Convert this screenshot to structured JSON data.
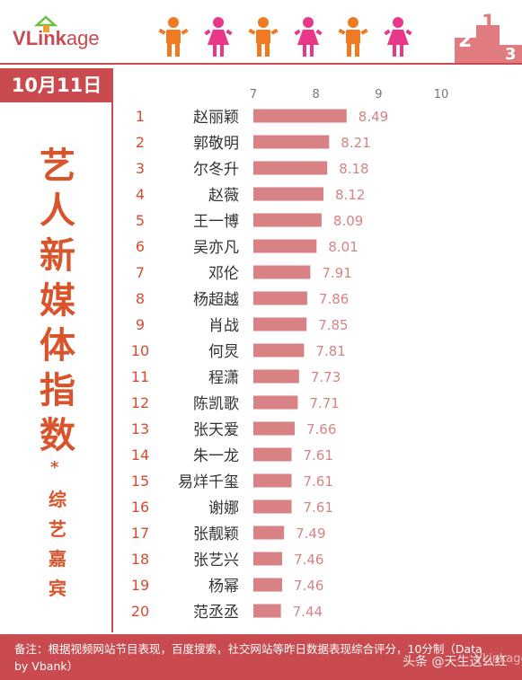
{
  "logo": {
    "v": "V",
    "link": "Link",
    "age": "age"
  },
  "icons": {
    "figures": [
      "person-icon-male",
      "person-icon-female",
      "person-icon-male",
      "person-icon-female",
      "person-icon-male",
      "person-icon-female"
    ],
    "podium": "podium-icon",
    "podium_numbers": [
      "2",
      "1",
      "3"
    ]
  },
  "colors": {
    "accent": "#c94a4f",
    "bar": "#d98285",
    "male": "#f07a22",
    "female": "#e8388a",
    "title": "#d9532b"
  },
  "date": "10月11日",
  "side": {
    "title": [
      "艺",
      "人",
      "新",
      "媒",
      "体",
      "指",
      "数"
    ],
    "star": "*",
    "subtitle": [
      "综",
      "艺",
      "嘉",
      "宾"
    ]
  },
  "chart_data": {
    "type": "bar",
    "orientation": "horizontal",
    "xlim": [
      7,
      10
    ],
    "xticks": [
      "7",
      "8",
      "9",
      "10"
    ],
    "ranks": [
      "1",
      "2",
      "3",
      "4",
      "5",
      "6",
      "7",
      "8",
      "9",
      "10",
      "11",
      "12",
      "13",
      "14",
      "15",
      "16",
      "17",
      "18",
      "19",
      "20"
    ],
    "categories": [
      "赵丽颖",
      "郭敬明",
      "尔冬升",
      "赵薇",
      "王一博",
      "吴亦凡",
      "邓伦",
      "杨超越",
      "肖战",
      "何炅",
      "程潇",
      "陈凯歌",
      "张天爱",
      "朱一龙",
      "易烊千玺",
      "谢娜",
      "张靓颖",
      "张艺兴",
      "杨幂",
      "范丞丞"
    ],
    "values": [
      8.49,
      8.21,
      8.18,
      8.12,
      8.09,
      8.01,
      7.91,
      7.86,
      7.85,
      7.81,
      7.73,
      7.71,
      7.66,
      7.61,
      7.61,
      7.61,
      7.49,
      7.46,
      7.46,
      7.44
    ],
    "value_labels": [
      "8.49",
      "8.21",
      "8.18",
      "8.12",
      "8.09",
      "8.01",
      "7.91",
      "7.86",
      "7.85",
      "7.81",
      "7.73",
      "7.71",
      "7.66",
      "7.61",
      "7.61",
      "7.61",
      "7.49",
      "7.46",
      "7.46",
      "7.44"
    ],
    "grid": false
  },
  "footer": {
    "note": "备注：根据视频网站节目表现，百度搜索，社交网站等昨日数据表现综合评分，10分制（Data by Vbank）",
    "watermark": "头条 @天生这么红",
    "watermark2": "VLinkage"
  }
}
